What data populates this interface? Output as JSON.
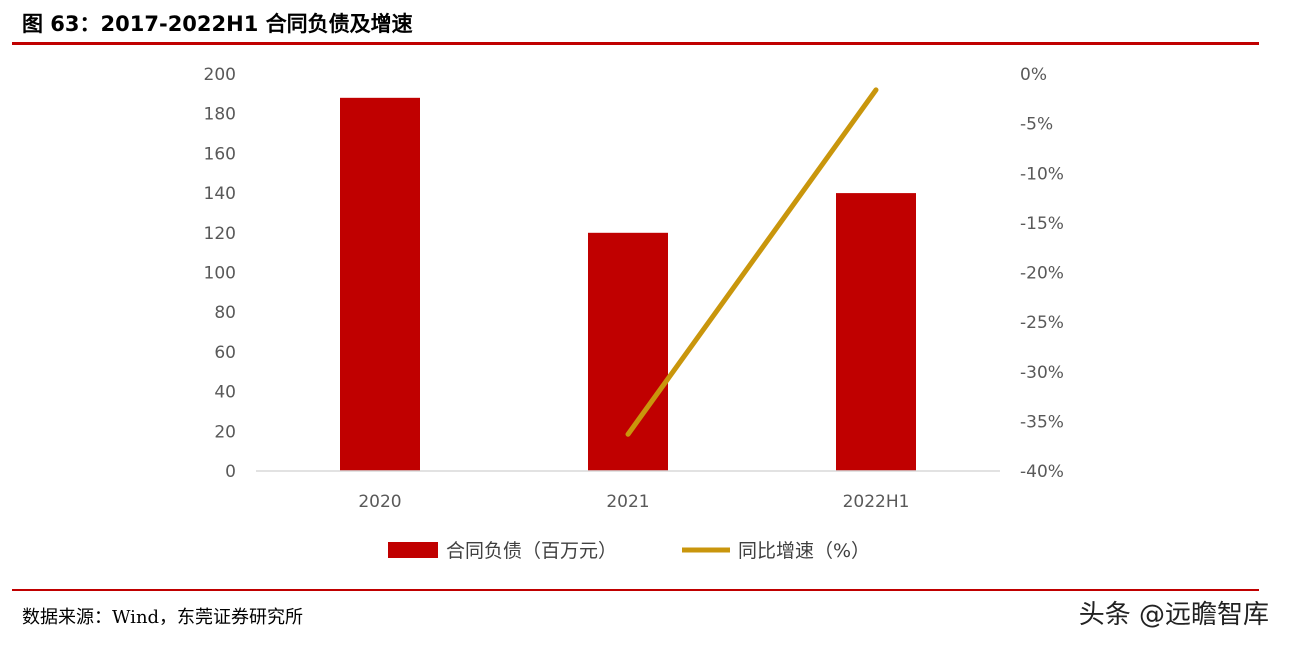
{
  "figure": {
    "title": "图 63：2017-2022H1 合同负债及增速",
    "source": "数据来源：Wind，东莞证券研究所",
    "watermark": "头条 @远瞻智库",
    "rule_color": "#C00000"
  },
  "chart_data": {
    "type": "bar",
    "categories": [
      "2020",
      "2021",
      "2022H1"
    ],
    "series": [
      {
        "name": "合同负债（百万元）",
        "type": "bar",
        "axis": "left",
        "color": "#C00000",
        "values": [
          188,
          120,
          140
        ]
      },
      {
        "name": "同比增速（%）",
        "type": "line",
        "axis": "right",
        "color": "#C9960C",
        "values": [
          null,
          -36.3,
          -1.6
        ]
      }
    ],
    "y_left": {
      "ylim": [
        0,
        200
      ],
      "ticks": [
        0,
        20,
        40,
        60,
        80,
        100,
        120,
        140,
        160,
        180,
        200
      ],
      "tick_labels": [
        "0",
        "20",
        "40",
        "60",
        "80",
        "100",
        "120",
        "140",
        "160",
        "180",
        "200"
      ]
    },
    "y_right": {
      "ylim": [
        -40,
        0
      ],
      "ticks": [
        -40,
        -35,
        -30,
        -25,
        -20,
        -15,
        -10,
        -5,
        0
      ],
      "tick_labels": [
        "-40%",
        "-35%",
        "-30%",
        "-25%",
        "-20%",
        "-15%",
        "-10%",
        "-5%",
        "0%"
      ]
    },
    "grid": false,
    "legend": "bottom"
  }
}
